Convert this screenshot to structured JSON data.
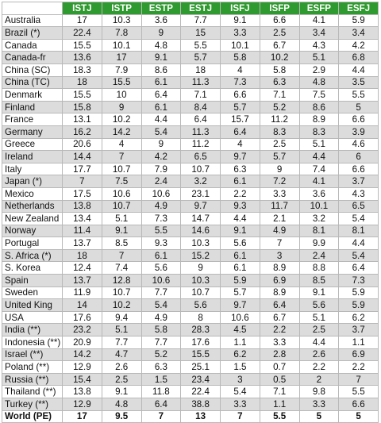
{
  "columns": [
    "",
    "ISTJ",
    "ISTP",
    "ESTP",
    "ESTJ",
    "ISFJ",
    "ISFP",
    "ESFP",
    "ESFJ"
  ],
  "rows": [
    [
      "Australia",
      "17",
      "10.3",
      "3.6",
      "7.7",
      "9.1",
      "6.6",
      "4.1",
      "5.9"
    ],
    [
      "Brazil (*)",
      "22.4",
      "7.8",
      "9",
      "15",
      "3.3",
      "2.5",
      "3.4",
      "3.4"
    ],
    [
      "Canada",
      "15.5",
      "10.1",
      "4.8",
      "5.5",
      "10.1",
      "6.7",
      "4.3",
      "4.2"
    ],
    [
      "Canada-fr",
      "13.6",
      "17",
      "9.1",
      "5.7",
      "5.8",
      "10.2",
      "5.1",
      "6.8"
    ],
    [
      "China (SC)",
      "18.3",
      "7.9",
      "8.6",
      "18",
      "4",
      "5.8",
      "2.9",
      "4.4"
    ],
    [
      "China (TC)",
      "18",
      "15.5",
      "6.1",
      "11.3",
      "7.3",
      "6.3",
      "4.8",
      "3.5"
    ],
    [
      "Denmark",
      "15.5",
      "10",
      "6.4",
      "7.1",
      "6.6",
      "7.1",
      "7.5",
      "5.5"
    ],
    [
      "Finland",
      "15.8",
      "9",
      "6.1",
      "8.4",
      "5.7",
      "5.2",
      "8.6",
      "5"
    ],
    [
      "France",
      "13.1",
      "10.2",
      "4.4",
      "6.4",
      "15.7",
      "11.2",
      "8.9",
      "6.6"
    ],
    [
      "Germany",
      "16.2",
      "14.2",
      "5.4",
      "11.3",
      "6.4",
      "8.3",
      "8.3",
      "3.9"
    ],
    [
      "Greece",
      "20.6",
      "4",
      "9",
      "11.2",
      "4",
      "2.5",
      "5.1",
      "4.6"
    ],
    [
      "Ireland",
      "14.4",
      "7",
      "4.2",
      "6.5",
      "9.7",
      "5.7",
      "4.4",
      "6"
    ],
    [
      "Italy",
      "17.7",
      "10.7",
      "7.9",
      "10.7",
      "6.3",
      "9",
      "7.4",
      "6.6"
    ],
    [
      "Japan (*)",
      "7",
      "7.5",
      "2.4",
      "3.2",
      "6.1",
      "7.2",
      "4.1",
      "3.7"
    ],
    [
      "Mexico",
      "17.5",
      "10.6",
      "10.6",
      "23.1",
      "2.2",
      "3.3",
      "3.6",
      "4.3"
    ],
    [
      "Netherlands",
      "13.8",
      "10.7",
      "4.9",
      "9.7",
      "9.3",
      "11.7",
      "10.1",
      "6.5"
    ],
    [
      "New Zealand",
      "13.4",
      "5.1",
      "7.3",
      "14.7",
      "4.4",
      "2.1",
      "3.2",
      "5.4"
    ],
    [
      "Norway",
      "11.4",
      "9.1",
      "5.5",
      "14.6",
      "9.1",
      "4.9",
      "8.1",
      "8.1"
    ],
    [
      "Portugal",
      "13.7",
      "8.5",
      "9.3",
      "10.3",
      "5.6",
      "7",
      "9.9",
      "4.4"
    ],
    [
      "S. Africa (*)",
      "18",
      "7",
      "6.1",
      "15.2",
      "6.1",
      "3",
      "2.4",
      "5.4"
    ],
    [
      "S. Korea",
      "12.4",
      "7.4",
      "5.6",
      "9",
      "6.1",
      "8.9",
      "8.8",
      "6.4"
    ],
    [
      "Spain",
      "13.7",
      "12.8",
      "10.6",
      "10.3",
      "5.9",
      "6.9",
      "8.5",
      "7.3"
    ],
    [
      "Sweden",
      "11.9",
      "10.7",
      "7.7",
      "10.7",
      "5.7",
      "8.9",
      "9.1",
      "5.9"
    ],
    [
      "United King",
      "14",
      "10.2",
      "5.4",
      "5.6",
      "9.7",
      "6.4",
      "5.6",
      "5.9"
    ],
    [
      "USA",
      "17.6",
      "9.4",
      "4.9",
      "8",
      "10.6",
      "6.7",
      "5.1",
      "6.2"
    ],
    [
      "India (**)",
      "23.2",
      "5.1",
      "5.8",
      "28.3",
      "4.5",
      "2.2",
      "2.5",
      "3.7"
    ],
    [
      "Indonesia (**)",
      "20.9",
      "7.7",
      "7.7",
      "17.6",
      "1.1",
      "3.3",
      "4.4",
      "1.1"
    ],
    [
      "Israel (**)",
      "14.2",
      "4.7",
      "5.2",
      "15.5",
      "6.2",
      "2.8",
      "2.6",
      "6.9"
    ],
    [
      "Poland (**)",
      "12.9",
      "2.6",
      "6.3",
      "25.1",
      "1.5",
      "0.7",
      "2.2",
      "2.2"
    ],
    [
      "Russia (**)",
      "15.4",
      "2.5",
      "1.5",
      "23.4",
      "3",
      "0.5",
      "2",
      "7"
    ],
    [
      "Thailand (**)",
      "13.8",
      "9.1",
      "11.8",
      "22.4",
      "5.4",
      "7.1",
      "9.8",
      "5.5"
    ],
    [
      "Turkey (**)",
      "12.9",
      "4.8",
      "6.4",
      "38.8",
      "3.3",
      "1.1",
      "3.3",
      "6.6"
    ]
  ],
  "total_row": [
    "World (PE)",
    "17",
    "9.5",
    "7",
    "13",
    "7",
    "5.5",
    "5",
    "5"
  ],
  "colors": {
    "header_bg": "#2f9a2f",
    "header_text": "#ffffff",
    "alt_row_bg": "#dcdcdc",
    "row_bg": "#ffffff",
    "border": "#b8b8b8"
  }
}
